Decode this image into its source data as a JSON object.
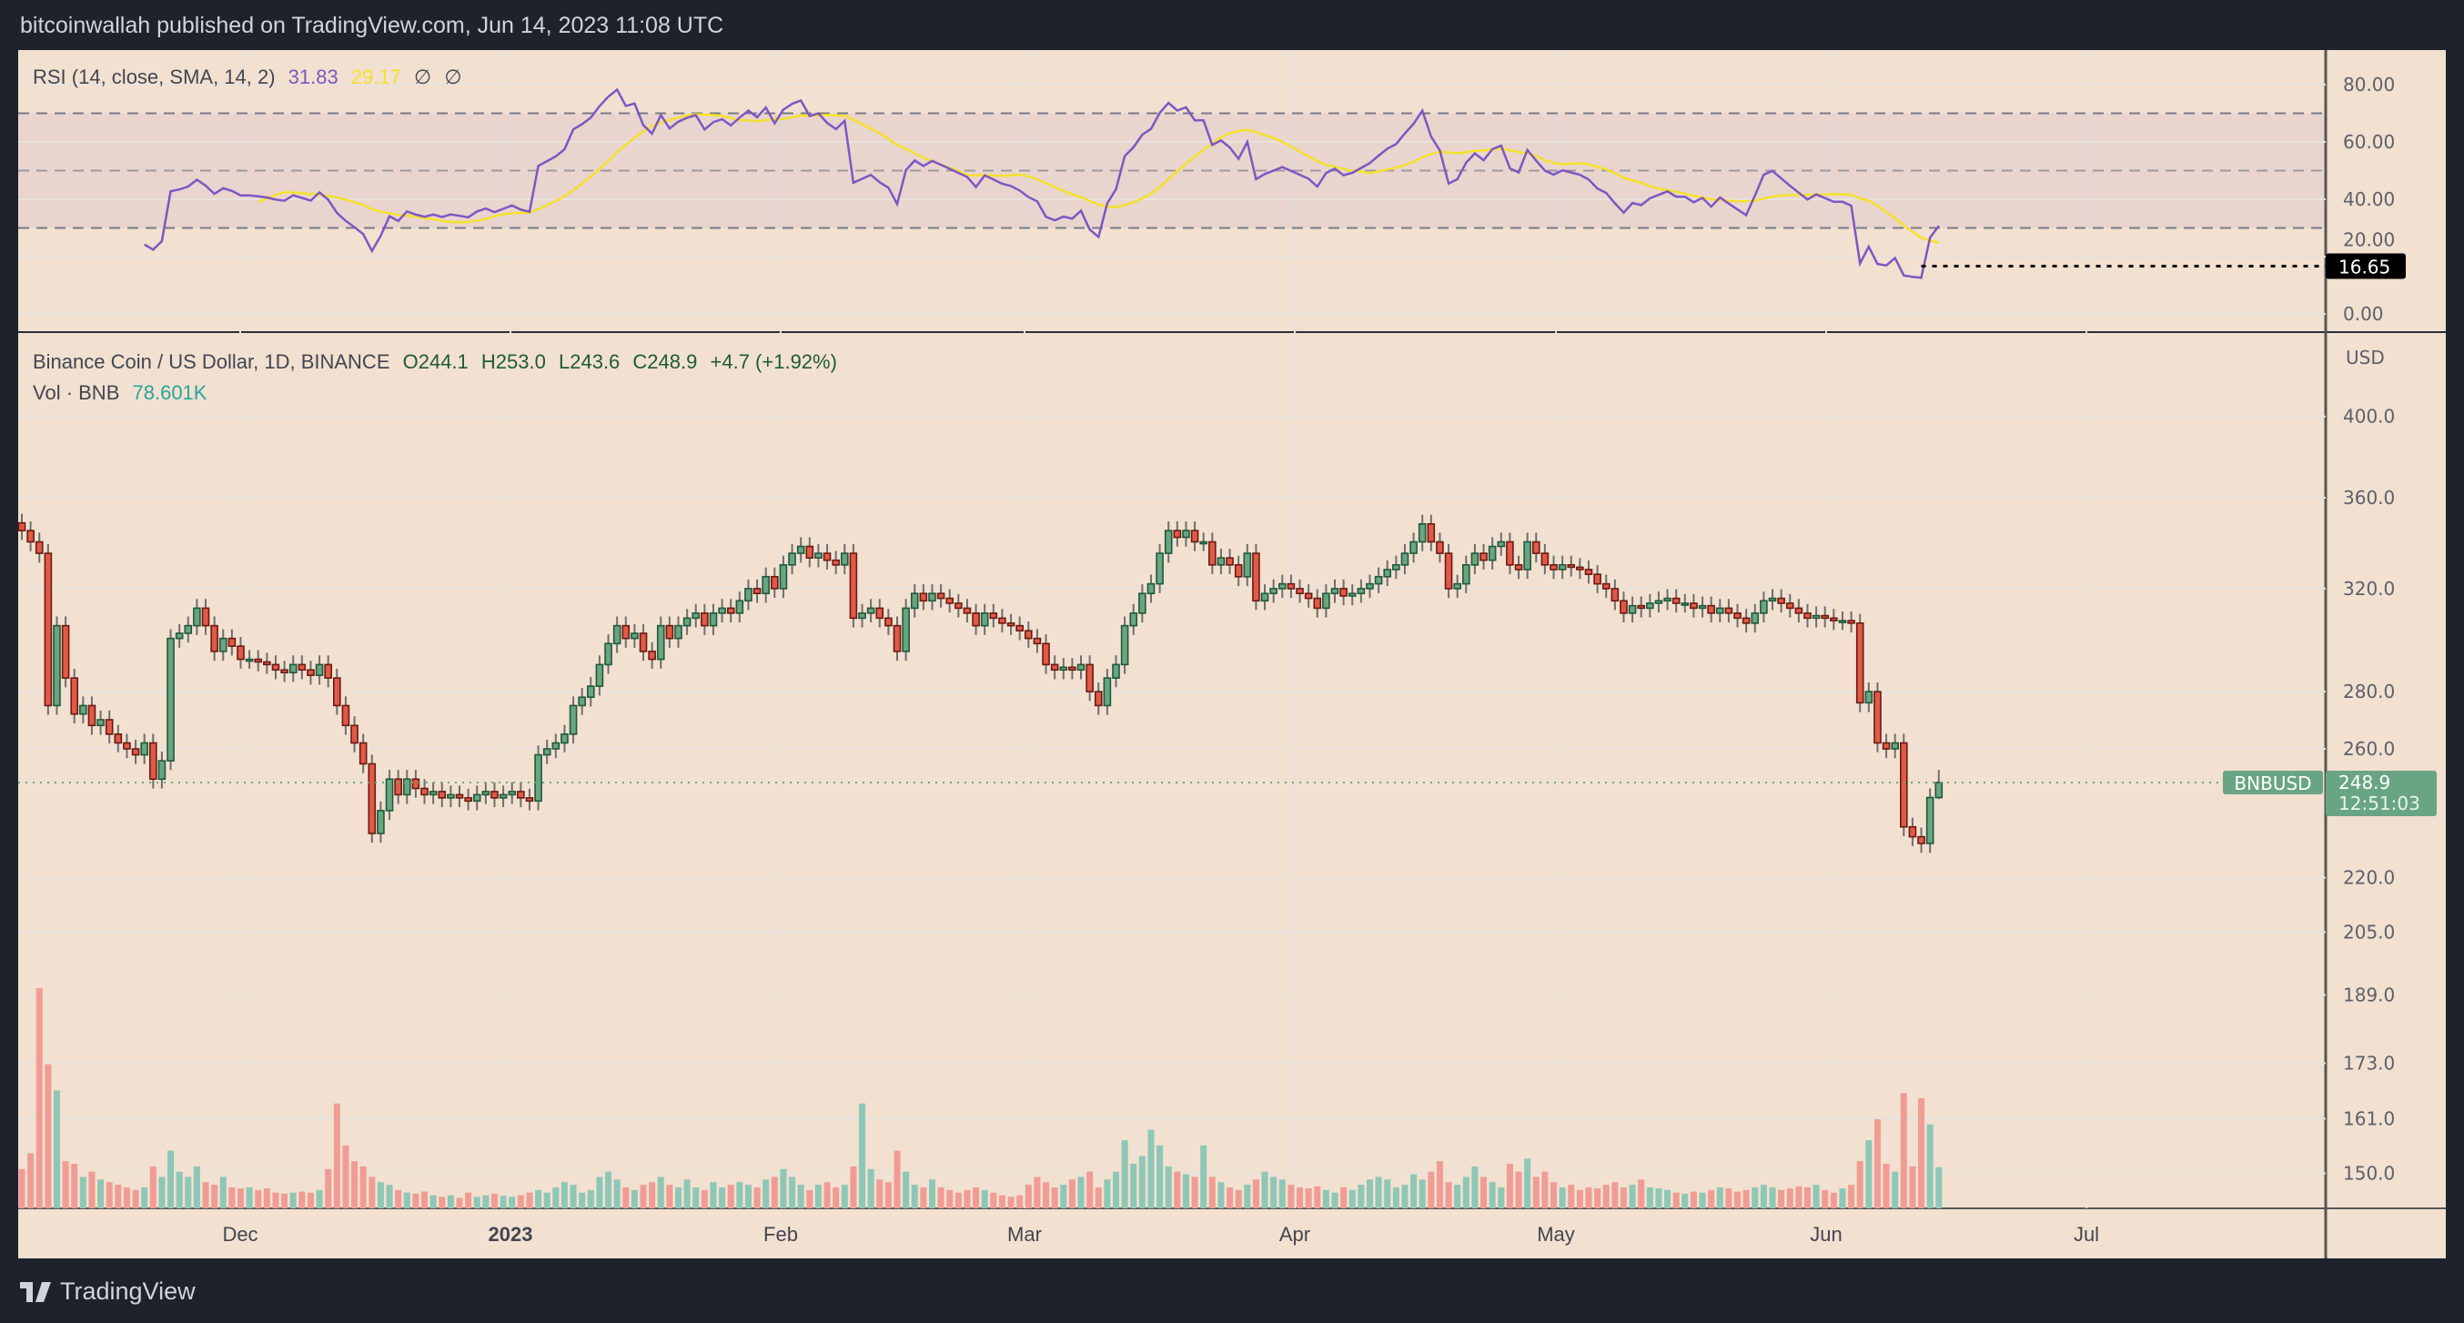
{
  "header": {
    "publish_line": "bitcoinwallah published on TradingView.com, Jun 14, 2023 11:08 UTC"
  },
  "footer": {
    "brand": "TradingView"
  },
  "colors": {
    "background": "#f2e0d0",
    "frame": "#1e222d",
    "up": "#6aa583",
    "up_border": "#1e5a3a",
    "down": "#e05a48",
    "down_border": "#6b1a12",
    "vol_up": "#8ec7b6",
    "vol_down": "#f09c94",
    "rsi": "#7e57c2",
    "rsi_ma": "#f5e12c",
    "last_price": "#6aa583"
  },
  "rsi_legend": {
    "title": "RSI (14, close, SMA, 14, 2)",
    "rsi_value": "31.83",
    "ma_value": "29.17",
    "na1": "∅",
    "na2": "∅"
  },
  "price_legend": {
    "symbol": "Binance Coin / US Dollar, 1D, BINANCE",
    "open": "O244.1",
    "high": "H253.0",
    "low": "L243.6",
    "close": "C248.9",
    "change": "+4.7 (+1.92%)",
    "vol_label": "Vol · BNB",
    "vol_value": "78.601K"
  },
  "rsi_axis": {
    "ticks": [
      "80.00",
      "60.00",
      "40.00",
      "20.00",
      "0.00"
    ],
    "bands": [
      70,
      50,
      30
    ],
    "min_label": "16.65"
  },
  "price_axis": {
    "currency": "USD",
    "ticks": [
      "400.0",
      "360.0",
      "320.0",
      "280.0",
      "260.0",
      "220.0",
      "205.0",
      "189.0",
      "173.0",
      "161.0",
      "150.0"
    ],
    "scale": "log"
  },
  "last_price": {
    "symbol": "BNBUSD",
    "price": "248.9",
    "countdown": "12:51:03"
  },
  "time_axis": {
    "labels": [
      "Dec",
      "2023",
      "Feb",
      "Mar",
      "Apr",
      "May",
      "Jun",
      "Jul"
    ]
  },
  "chart_data": {
    "type": "candlestick",
    "interval": "1D",
    "first_bar": "2022-11-06",
    "last_bar": {
      "open": 244.1,
      "high": 253.0,
      "low": 243.6,
      "close": 248.9,
      "volume_k": 78.601
    },
    "close": [
      345,
      340,
      335,
      275,
      305,
      285,
      272,
      275,
      268,
      270,
      265,
      262,
      260,
      258,
      262,
      250,
      256,
      300,
      302,
      305,
      312,
      305,
      295,
      300,
      297,
      292,
      292,
      291,
      290,
      288,
      287,
      290,
      288,
      286,
      290,
      285,
      275,
      268,
      262,
      255,
      233,
      240,
      250,
      245,
      250,
      247,
      245,
      246,
      244,
      245,
      244,
      243,
      245,
      246,
      244,
      245,
      246,
      244,
      243,
      258,
      260,
      262,
      265,
      275,
      278,
      282,
      290,
      298,
      305,
      300,
      302,
      295,
      292,
      305,
      300,
      305,
      308,
      310,
      305,
      310,
      312,
      310,
      315,
      320,
      318,
      325,
      320,
      330,
      335,
      338,
      333,
      335,
      332,
      330,
      335,
      308,
      310,
      312,
      308,
      305,
      295,
      312,
      318,
      315,
      318,
      316,
      314,
      312,
      310,
      305,
      310,
      308,
      306,
      305,
      303,
      300,
      298,
      290,
      288,
      289,
      288,
      290,
      280,
      275,
      285,
      290,
      305,
      310,
      318,
      322,
      335,
      345,
      342,
      345,
      340,
      340,
      330,
      333,
      330,
      325,
      335,
      315,
      318,
      320,
      322,
      320,
      318,
      316,
      312,
      318,
      320,
      317,
      318,
      320,
      322,
      325,
      328,
      330,
      335,
      340,
      348,
      340,
      335,
      320,
      322,
      330,
      335,
      332,
      338,
      340,
      330,
      328,
      340,
      335,
      330,
      328,
      330,
      329,
      328,
      326,
      322,
      320,
      315,
      310,
      313,
      312,
      314,
      315,
      316,
      314,
      314,
      312,
      313,
      310,
      312,
      310,
      308,
      306,
      310,
      315,
      316,
      314,
      312,
      310,
      308,
      309,
      308,
      307,
      307,
      306,
      276,
      280,
      262,
      260,
      262,
      235,
      232,
      230,
      244.1,
      248.9
    ],
    "volume_k": [
      75,
      105,
      420,
      275,
      225,
      90,
      85,
      60,
      70,
      55,
      50,
      45,
      40,
      35,
      40,
      80,
      60,
      110,
      70,
      60,
      80,
      50,
      45,
      60,
      40,
      38,
      40,
      35,
      38,
      30,
      28,
      30,
      32,
      30,
      35,
      75,
      200,
      120,
      90,
      80,
      60,
      50,
      45,
      35,
      30,
      28,
      32,
      25,
      22,
      25,
      20,
      30,
      22,
      25,
      28,
      24,
      22,
      25,
      30,
      35,
      30,
      40,
      50,
      45,
      30,
      35,
      60,
      70,
      55,
      40,
      35,
      45,
      50,
      60,
      45,
      40,
      55,
      40,
      35,
      50,
      40,
      45,
      50,
      45,
      40,
      55,
      60,
      75,
      60,
      45,
      35,
      45,
      50,
      40,
      45,
      80,
      200,
      75,
      55,
      50,
      110,
      70,
      45,
      40,
      55,
      40,
      35,
      30,
      35,
      40,
      35,
      30,
      25,
      22,
      25,
      45,
      60,
      50,
      40,
      45,
      55,
      60,
      70,
      40,
      55,
      70,
      130,
      85,
      100,
      150,
      120,
      80,
      70,
      65,
      60,
      120,
      60,
      50,
      40,
      35,
      45,
      55,
      70,
      60,
      55,
      45,
      40,
      38,
      42,
      35,
      30,
      40,
      35,
      45,
      55,
      60,
      55,
      40,
      45,
      65,
      55,
      70,
      90,
      50,
      45,
      60,
      80,
      60,
      50,
      40,
      85,
      70,
      95,
      60,
      70,
      50,
      40,
      45,
      35,
      40,
      38,
      45,
      50,
      40,
      45,
      55,
      40,
      38,
      35,
      30,
      28,
      32,
      30,
      35,
      40,
      38,
      32,
      35,
      40,
      45,
      40,
      35,
      38,
      42,
      40,
      45,
      35,
      30,
      38,
      45,
      90,
      130,
      170,
      85,
      70,
      220,
      80,
      210,
      160,
      78.601
    ],
    "rsi": {
      "length": 14,
      "source": "close",
      "ma": "SMA",
      "ma_length": 14,
      "current": 31.83,
      "ma_current": 29.17,
      "marked_low": 16.65,
      "levels": [
        70,
        50,
        30
      ],
      "ylim": [
        0,
        80
      ]
    },
    "ylim": [
      150,
      400
    ]
  }
}
